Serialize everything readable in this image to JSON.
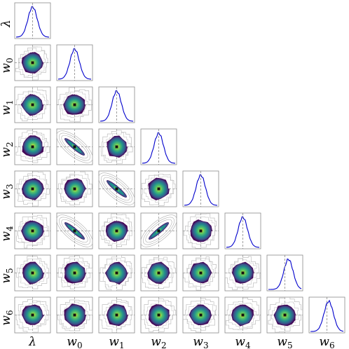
{
  "chart_data": {
    "type": "corner",
    "title": "",
    "parameters": [
      "λ",
      "w0",
      "w1",
      "w2",
      "w3",
      "w4",
      "w5",
      "w6"
    ],
    "axis_labels": [
      {
        "base": "λ",
        "sub": ""
      },
      {
        "base": "w",
        "sub": "0"
      },
      {
        "base": "w",
        "sub": "1"
      },
      {
        "base": "w",
        "sub": "2"
      },
      {
        "base": "w",
        "sub": "3"
      },
      {
        "base": "w",
        "sub": "4"
      },
      {
        "base": "w",
        "sub": "5"
      },
      {
        "base": "w",
        "sub": "6"
      }
    ],
    "truth_marker": "median (dashed crosshair)",
    "marginal_line_color": "#0000cc",
    "truth_line_color": "#888888",
    "contour_colormap": [
      "#440154",
      "#3b528b",
      "#21908d",
      "#5dc963",
      "#fde725"
    ],
    "correlations": [
      {
        "pair": [
          "w0",
          "w2"
        ],
        "rho": -0.9
      },
      {
        "pair": [
          "w1",
          "w3"
        ],
        "rho": -0.85
      },
      {
        "pair": [
          "w0",
          "w4"
        ],
        "rho": -0.75
      },
      {
        "pair": [
          "w2",
          "w4"
        ],
        "rho": 0.85
      }
    ],
    "marginal_modes_relative": [
      0.0,
      0.0,
      0.0,
      0.0,
      0.0,
      0.0,
      0.1,
      0.05
    ]
  }
}
